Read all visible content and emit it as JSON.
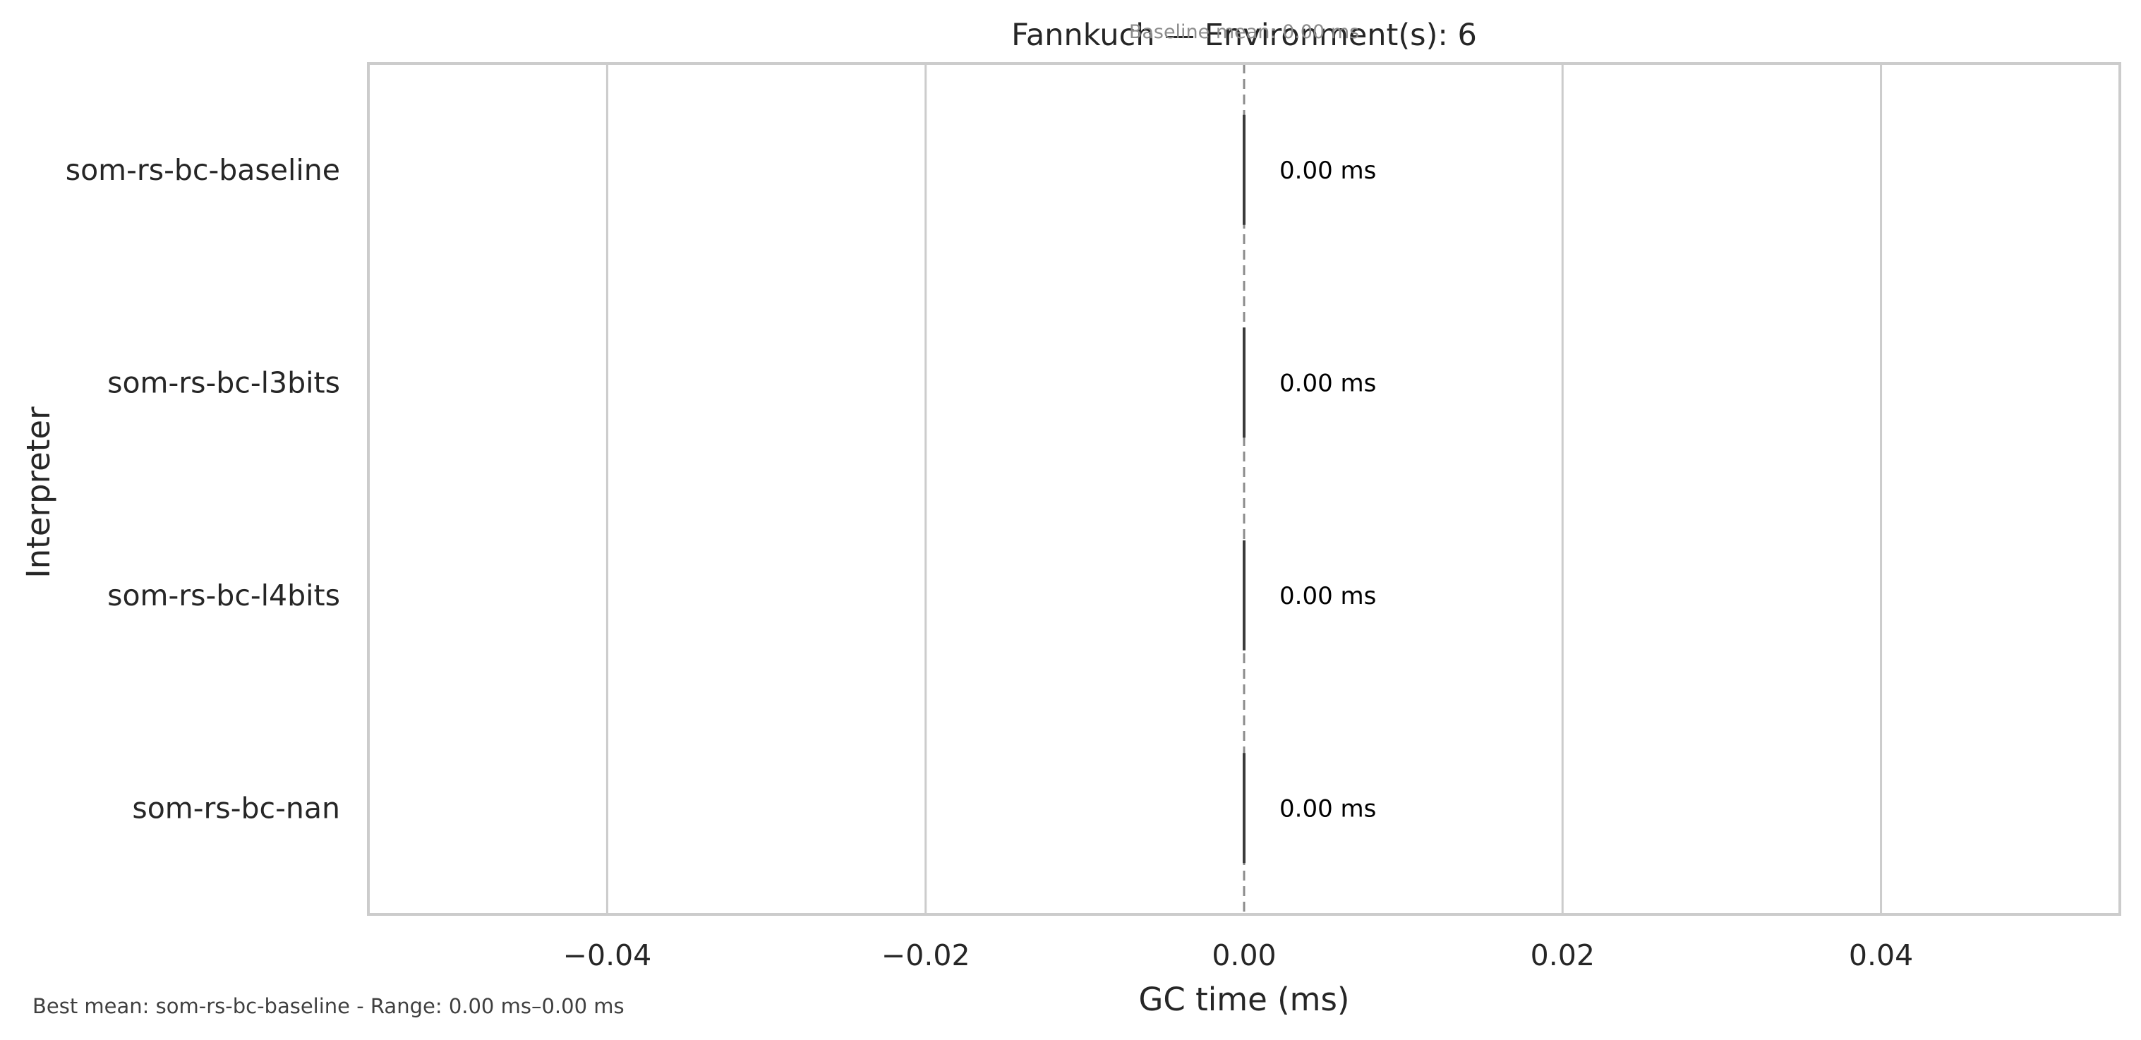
{
  "chart_data": {
    "type": "bar",
    "orientation": "horizontal",
    "title": "Fannkuch — Environment(s): 6",
    "subtitle": "Baseline mean: 0.00 ms",
    "xlabel": "GC time (ms)",
    "ylabel": "Interpreter",
    "categories": [
      "som-rs-bc-baseline",
      "som-rs-bc-l3bits",
      "som-rs-bc-l4bits",
      "som-rs-bc-nan"
    ],
    "values": [
      0.0,
      0.0,
      0.0,
      0.0
    ],
    "value_labels": [
      "0.00 ms",
      "0.00 ms",
      "0.00 ms",
      "0.00 ms"
    ],
    "error_bars": [
      [
        0.0,
        0.0
      ],
      [
        0.0,
        0.0
      ],
      [
        0.0,
        0.0
      ],
      [
        0.0,
        0.0
      ]
    ],
    "xlim": [
      -0.055,
      0.055
    ],
    "xticks": [
      -0.04,
      -0.02,
      0.0,
      0.02,
      0.04
    ],
    "xtick_labels": [
      "−0.04",
      "−0.02",
      "0.00",
      "0.02",
      "0.04"
    ],
    "reference_line": {
      "x": 0.0,
      "style": "dashed"
    },
    "grid": "vertical",
    "footer": "Best mean: som-rs-bc-baseline - Range: 0.00 ms–0.00 ms",
    "colors": {
      "grid": "#cccccc",
      "frame": "#cccccc",
      "error_bar": "#3b3b3b",
      "reference_line": "#8c8c8c"
    }
  }
}
